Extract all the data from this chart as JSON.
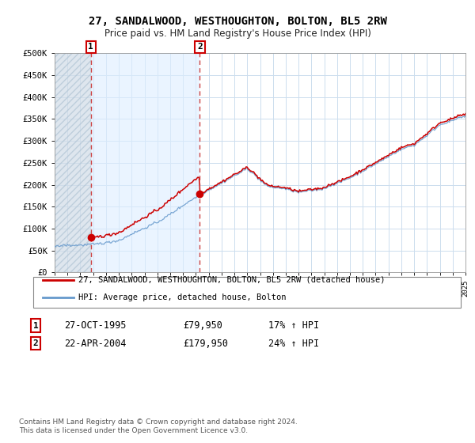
{
  "title": "27, SANDALWOOD, WESTHOUGHTON, BOLTON, BL5 2RW",
  "subtitle": "Price paid vs. HM Land Registry's House Price Index (HPI)",
  "ylim": [
    0,
    500000
  ],
  "ytick_labels": [
    "£0",
    "£50K",
    "£100K",
    "£150K",
    "£200K",
    "£250K",
    "£300K",
    "£350K",
    "£400K",
    "£450K",
    "£500K"
  ],
  "ytick_values": [
    0,
    50000,
    100000,
    150000,
    200000,
    250000,
    300000,
    350000,
    400000,
    450000,
    500000
  ],
  "x_start_year": 1993,
  "x_end_year": 2025,
  "sale1_date": 1995.82,
  "sale1_price": 79950,
  "sale2_date": 2004.31,
  "sale2_price": 179950,
  "red_line_color": "#cc0000",
  "blue_line_color": "#6699cc",
  "dashed_line_color": "#cc4444",
  "marker_color": "#cc0000",
  "plot_bg_color": "#ffffff",
  "hatch_color": "#c8d8e8",
  "between_color": "#ddeeff",
  "grid_color": "#ccddee",
  "legend_label1": "27, SANDALWOOD, WESTHOUGHTON, BOLTON, BL5 2RW (detached house)",
  "legend_label2": "HPI: Average price, detached house, Bolton",
  "annotation1_date": "27-OCT-1995",
  "annotation1_price": "£79,950",
  "annotation1_hpi": "17% ↑ HPI",
  "annotation2_date": "22-APR-2004",
  "annotation2_price": "£179,950",
  "annotation2_hpi": "24% ↑ HPI",
  "footer": "Contains HM Land Registry data © Crown copyright and database right 2024.\nThis data is licensed under the Open Government Licence v3.0."
}
